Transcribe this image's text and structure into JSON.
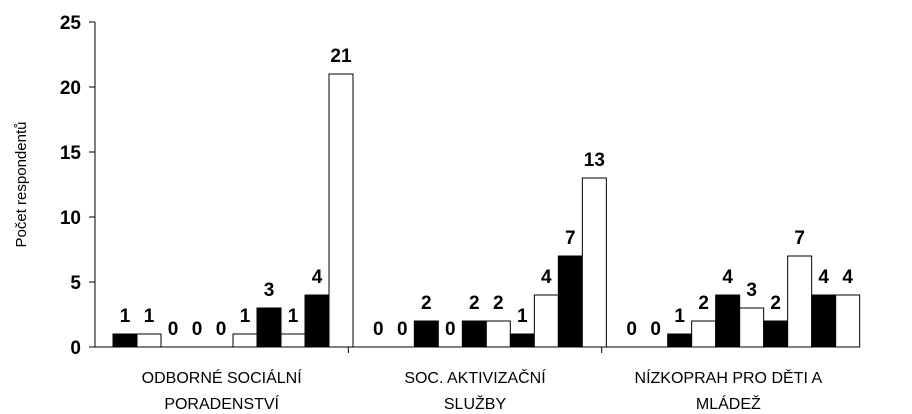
{
  "chart_data": {
    "type": "bar",
    "ylabel": "Počet respondentů",
    "ylim": [
      0,
      25
    ],
    "yticks": [
      "0",
      "5",
      "10",
      "15",
      "20",
      "25"
    ],
    "categories": [
      [
        "ODBORNÉ SOCIÁLNÍ",
        "PORADENSTVÍ"
      ],
      [
        "SOC. AKTIVIZAČNÍ",
        "SLUŽBY"
      ],
      [
        "NÍZKOPRAH PRO DĚTI A",
        "MLÁDEŽ"
      ]
    ],
    "bar_fills": [
      "#000000",
      "#ffffff"
    ],
    "bar_stroke": "#000000",
    "groups": [
      {
        "values": [
          1,
          1,
          0,
          0,
          0,
          1,
          3,
          1,
          4,
          21
        ]
      },
      {
        "values": [
          0,
          0,
          2,
          0,
          2,
          2,
          1,
          4,
          7,
          13
        ]
      },
      {
        "values": [
          0,
          0,
          1,
          2,
          4,
          3,
          2,
          7,
          4,
          4
        ]
      }
    ],
    "grid": false,
    "legend": "none"
  }
}
